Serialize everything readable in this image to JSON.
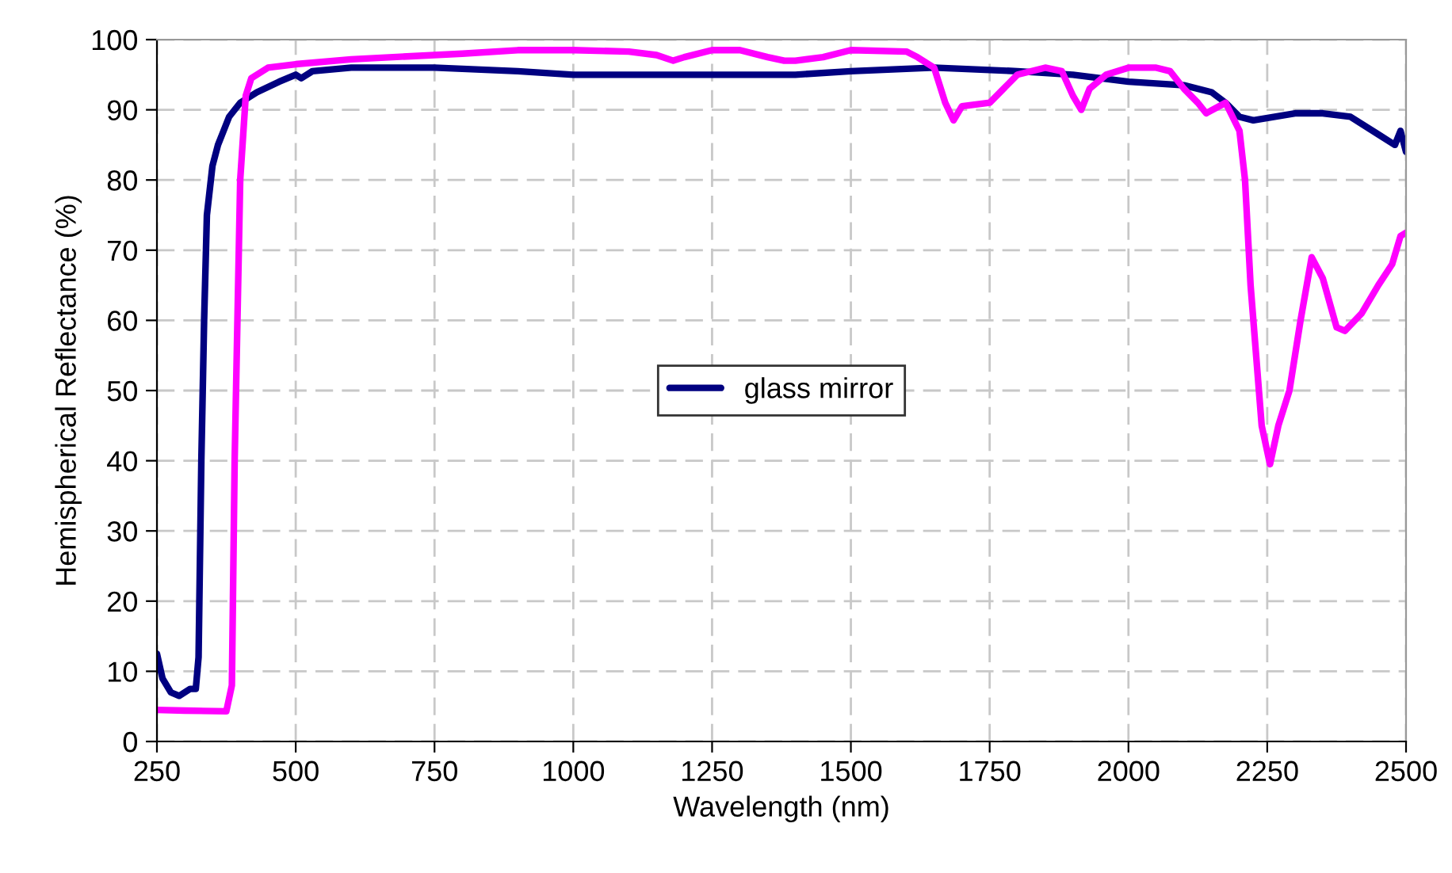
{
  "chart_data": {
    "type": "line",
    "xlabel": "Wavelength (nm)",
    "ylabel": "Hemispherical Reflectance (%)",
    "xlim": [
      250,
      2500
    ],
    "xticks": [
      250,
      500,
      750,
      1000,
      1250,
      1500,
      1750,
      2000,
      2250,
      2500
    ],
    "ylim": [
      0,
      100
    ],
    "yticks": [
      0,
      10,
      20,
      30,
      40,
      50,
      60,
      70,
      80,
      90,
      100
    ],
    "grid": true,
    "legend": "center",
    "marker": "none",
    "line_style": "solid",
    "series": [
      {
        "name": "glass mirror",
        "color": "#000080",
        "x": [
          250,
          260,
          275,
          290,
          300,
          310,
          320,
          325,
          330,
          335,
          340,
          350,
          360,
          370,
          380,
          400,
          430,
          470,
          500,
          510,
          530,
          600,
          750,
          900,
          1000,
          1250,
          1400,
          1500,
          1650,
          1800,
          1900,
          2000,
          2100,
          2150,
          2175,
          2200,
          2225,
          2300,
          2350,
          2400,
          2450,
          2480,
          2490,
          2500
        ],
        "values": [
          12.5,
          9,
          7,
          6.5,
          7,
          7.5,
          7.5,
          12,
          40,
          60,
          75,
          82,
          85,
          87,
          89,
          91,
          92.5,
          94,
          95,
          94.5,
          95.5,
          96,
          96,
          95.5,
          95,
          95,
          95,
          95.5,
          96,
          95.5,
          95,
          94,
          93.5,
          92.5,
          91,
          89,
          88.5,
          89.5,
          89.5,
          89,
          86.5,
          85,
          87,
          84
        ]
      },
      {
        "color": "#ff00ff",
        "x": [
          250,
          300,
          375,
          385,
          390,
          400,
          410,
          420,
          450,
          500,
          600,
          700,
          800,
          900,
          1000,
          1100,
          1150,
          1180,
          1200,
          1250,
          1300,
          1350,
          1380,
          1400,
          1450,
          1500,
          1600,
          1620,
          1650,
          1670,
          1685,
          1700,
          1750,
          1775,
          1800,
          1850,
          1880,
          1900,
          1915,
          1930,
          1960,
          2000,
          2050,
          2075,
          2100,
          2125,
          2140,
          2175,
          2200,
          2210,
          2220,
          2240,
          2255,
          2270,
          2290,
          2310,
          2330,
          2350,
          2375,
          2390,
          2420,
          2450,
          2475,
          2490,
          2500
        ],
        "values": [
          4.5,
          4.4,
          4.3,
          8,
          40,
          80,
          92,
          94.5,
          96,
          96.5,
          97.2,
          97.6,
          98,
          98.5,
          98.5,
          98.3,
          97.8,
          97,
          97.5,
          98.5,
          98.5,
          97.5,
          97,
          97,
          97.5,
          98.5,
          98.3,
          97.5,
          96,
          91,
          88.5,
          90.5,
          91,
          93,
          95,
          96,
          95.5,
          92,
          90,
          93,
          95,
          96,
          96,
          95.5,
          93,
          91,
          89.5,
          91,
          87,
          80,
          65,
          45,
          39.5,
          45,
          50,
          60,
          69,
          66,
          59,
          58.5,
          61,
          65,
          68,
          72,
          72.5
        ]
      }
    ]
  }
}
